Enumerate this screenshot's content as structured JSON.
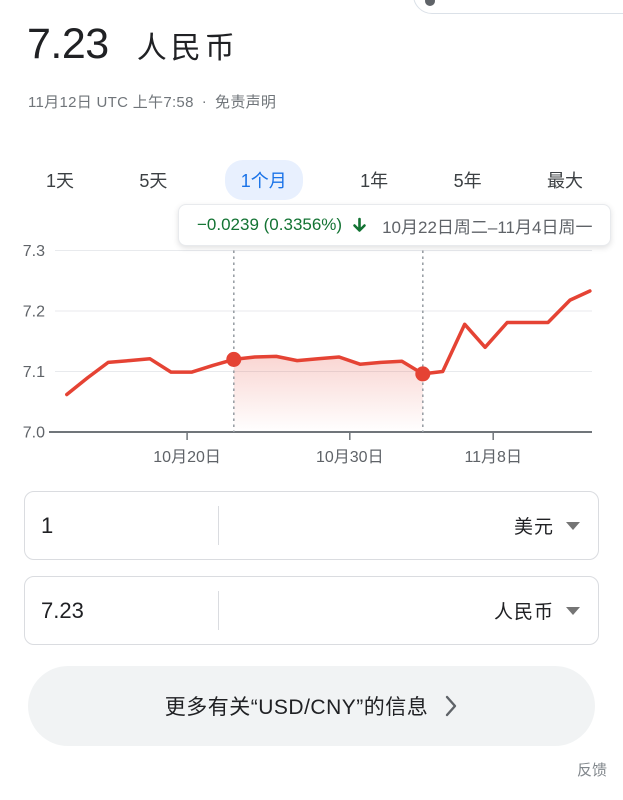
{
  "header": {
    "price": "7.23",
    "currency_label": "人民币",
    "timestamp": "11月12日 UTC 上午7:58",
    "separator": "·",
    "disclaimer": "免责声明"
  },
  "tabs": [
    {
      "label": "1天",
      "active": false
    },
    {
      "label": "5天",
      "active": false
    },
    {
      "label": "1个月",
      "active": true
    },
    {
      "label": "1年",
      "active": false
    },
    {
      "label": "5年",
      "active": false
    },
    {
      "label": "最大",
      "active": false
    }
  ],
  "tooltip": {
    "change": "−0.0239 (0.3356%)",
    "direction": "down",
    "date_range": "10月22日周二–11月4日周一"
  },
  "chart_data": {
    "type": "line",
    "title": "",
    "xlabel": "",
    "ylabel": "",
    "ylim": [
      7.0,
      7.3
    ],
    "grid": true,
    "y_ticks": [
      {
        "value": 7.0,
        "label": "7.0"
      },
      {
        "value": 7.1,
        "label": "7.1"
      },
      {
        "value": 7.2,
        "label": "7.2"
      },
      {
        "value": 7.3,
        "label": "7.3"
      }
    ],
    "x_ticks": [
      {
        "label": "10月20日",
        "pos": 0.246
      },
      {
        "label": "10月30日",
        "pos": 0.549
      },
      {
        "label": "11月8日",
        "pos": 0.816
      }
    ],
    "series": [
      {
        "name": "USD/CNY",
        "points": [
          {
            "pos": 0.022,
            "value": 7.062
          },
          {
            "pos": 0.061,
            "value": 7.09
          },
          {
            "pos": 0.099,
            "value": 7.115
          },
          {
            "pos": 0.138,
            "value": 7.118
          },
          {
            "pos": 0.177,
            "value": 7.121
          },
          {
            "pos": 0.216,
            "value": 7.099
          },
          {
            "pos": 0.255,
            "value": 7.099
          },
          {
            "pos": 0.294,
            "value": 7.11
          },
          {
            "pos": 0.333,
            "value": 7.12
          },
          {
            "pos": 0.372,
            "value": 7.124
          },
          {
            "pos": 0.412,
            "value": 7.125
          },
          {
            "pos": 0.451,
            "value": 7.118
          },
          {
            "pos": 0.49,
            "value": 7.121
          },
          {
            "pos": 0.529,
            "value": 7.124
          },
          {
            "pos": 0.568,
            "value": 7.112
          },
          {
            "pos": 0.607,
            "value": 7.115
          },
          {
            "pos": 0.646,
            "value": 7.117
          },
          {
            "pos": 0.685,
            "value": 7.096
          },
          {
            "pos": 0.722,
            "value": 7.1
          },
          {
            "pos": 0.763,
            "value": 7.178
          },
          {
            "pos": 0.801,
            "value": 7.14
          },
          {
            "pos": 0.842,
            "value": 7.181
          },
          {
            "pos": 0.918,
            "value": 7.181
          },
          {
            "pos": 0.959,
            "value": 7.218
          },
          {
            "pos": 0.996,
            "value": 7.233
          }
        ]
      }
    ],
    "selection": {
      "start_index": 8,
      "end_index": 17,
      "start_value": 7.12,
      "end_value": 7.096,
      "start_date_label": "10月22日周二",
      "end_date_label": "11月4日周一",
      "change": "−0.0239",
      "change_pct": "0.3356%",
      "direction": "down"
    },
    "colors": {
      "line": "#e54334",
      "selection_fill_top": "rgba(229,67,52,0.22)",
      "selection_fill_bottom": "rgba(229,67,52,0)",
      "dashed": "#9aa0a6",
      "grid": "#e8eaed",
      "axis": "#70757a",
      "tick_label": "#5f6368"
    }
  },
  "converter": {
    "rows": [
      {
        "amount": "1",
        "currency": "美元"
      },
      {
        "amount": "7.23",
        "currency": "人民币"
      }
    ]
  },
  "more_button": {
    "label": "更多有关“USD/CNY”的信息"
  },
  "footer": {
    "feedback": "反馈"
  },
  "colors": {
    "accent_blue": "#1a73e8",
    "tab_active_bg": "#e8f0fe",
    "change_green": "#137333",
    "text_primary": "#202124",
    "text_secondary": "#70757a"
  }
}
